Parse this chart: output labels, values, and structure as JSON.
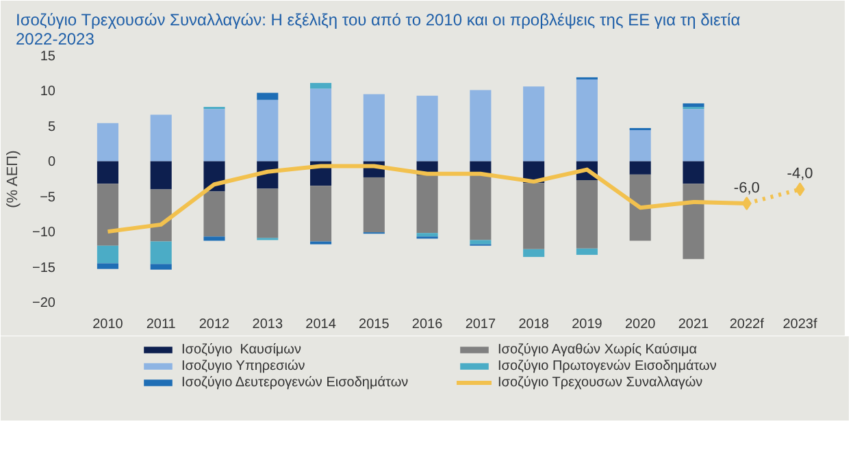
{
  "chart_data": {
    "type": "bar",
    "stacked": true,
    "title": "Ισοζύγιο Τρεχουσών Συναλλαγών: Η εξέλιξη του από το 2010 και οι προβλέψεις της ΕΕ για τη διετία\n2022-2023",
    "ylabel": "(% ΑΕΠ)",
    "categories": [
      "2010",
      "2011",
      "2012",
      "2013",
      "2014",
      "2015",
      "2016",
      "2017",
      "2018",
      "2019",
      "2020",
      "2021",
      "2022f",
      "2023f"
    ],
    "ylim": [
      -20,
      15
    ],
    "yticks": [
      -20,
      -15,
      -10,
      -5,
      0,
      5,
      10,
      15
    ],
    "grid": false,
    "legend": "bottom",
    "series": [
      {
        "name": "Ισοζύγιο  Καυσίμων",
        "color": "#0d1f4f",
        "values": [
          -3.2,
          -4.0,
          -4.3,
          -3.9,
          -3.5,
          -2.3,
          -2.0,
          -2.0,
          -3.1,
          -2.7,
          -1.9,
          -3.2,
          null,
          null
        ]
      },
      {
        "name": "Ισοζύγιο Αγαθών Χωρίς Καύσιμα",
        "color": "#808080",
        "values": [
          -8.8,
          -7.4,
          -6.4,
          -7.0,
          -7.9,
          -7.8,
          -8.2,
          -9.2,
          -9.4,
          -9.7,
          -9.4,
          -10.7,
          null,
          null
        ]
      },
      {
        "name": "Ισοζυγιο Υπηρεσιών",
        "color": "#8eb4e3",
        "values": [
          5.4,
          6.6,
          7.4,
          8.7,
          10.3,
          9.5,
          9.3,
          10.1,
          10.6,
          11.6,
          4.4,
          7.4,
          null,
          null
        ]
      },
      {
        "name": "Ισοζύγιο Πρωτογενών Εισοδημάτων",
        "color": "#4bacc6",
        "values": [
          -2.5,
          -3.2,
          0.3,
          -0.3,
          0.8,
          null,
          -0.5,
          -0.6,
          -1.1,
          -0.9,
          null,
          0.3,
          null,
          null
        ]
      },
      {
        "name": "Ισοζύγιο Δευτερογενών Εισοδημάτων",
        "color": "#1f6eb5",
        "values": [
          -0.8,
          -0.8,
          -0.6,
          1.0,
          -0.4,
          -0.2,
          -0.3,
          -0.2,
          null,
          0.3,
          0.3,
          0.5,
          null,
          null
        ]
      },
      {
        "name": "Ισοζύγιο Τρεχουσων Συναλλαγών",
        "type": "line",
        "color": "#f2c14e",
        "line_style": "solid",
        "marker": "none",
        "values": [
          -10.0,
          -9.0,
          -3.3,
          -1.5,
          -0.7,
          -0.7,
          -1.8,
          -1.8,
          -2.9,
          -1.2,
          -6.6,
          -5.8,
          -6.0,
          null
        ]
      },
      {
        "type": "line",
        "color": "#f2c14e",
        "line_style": "dotted",
        "marker": "diamond",
        "values": [
          null,
          null,
          null,
          null,
          null,
          null,
          null,
          null,
          null,
          null,
          null,
          null,
          -6.0,
          -4.0
        ],
        "value_labels": [
          null,
          null,
          null,
          null,
          null,
          null,
          null,
          null,
          null,
          null,
          null,
          null,
          "-6,0",
          "-4,0"
        ]
      }
    ]
  }
}
